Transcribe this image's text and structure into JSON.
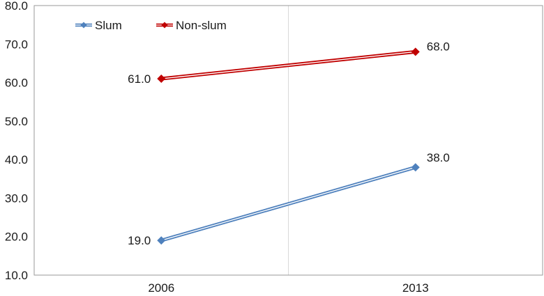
{
  "chart_data": {
    "type": "line",
    "x": [
      "2006",
      "2013"
    ],
    "ylim": [
      10,
      80
    ],
    "yticks": [
      "10.0",
      "20.0",
      "30.0",
      "40.0",
      "50.0",
      "60.0",
      "70.0",
      "80.0"
    ],
    "grid": {
      "vertical": true,
      "horizontal": false
    },
    "legend": "top-left",
    "series": [
      {
        "name": "Slum",
        "values": [
          19.0,
          38.0
        ],
        "labels": [
          "19.0",
          "38.0"
        ],
        "color": "#4f81bd",
        "marker": "diamond"
      },
      {
        "name": "Non-slum",
        "values": [
          61.0,
          68.0
        ],
        "labels": [
          "61.0",
          "68.0"
        ],
        "color": "#c00000",
        "marker": "diamond"
      }
    ]
  }
}
